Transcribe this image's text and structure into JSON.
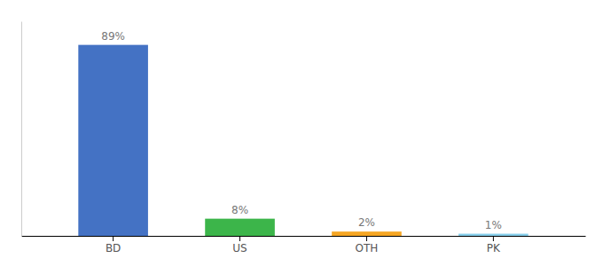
{
  "chart_data": {
    "type": "bar",
    "categories": [
      "BD",
      "US",
      "OTH",
      "PK"
    ],
    "values": [
      89,
      8,
      2,
      1
    ],
    "value_labels": [
      "89%",
      "8%",
      "2%",
      "1%"
    ],
    "data_labels": true,
    "colors": [
      "#4472C4",
      "#3CB54A",
      "#F5A623",
      "#87CEEB"
    ],
    "ylim": [
      0,
      100
    ],
    "tick_labels": "x",
    "grid": false
  }
}
